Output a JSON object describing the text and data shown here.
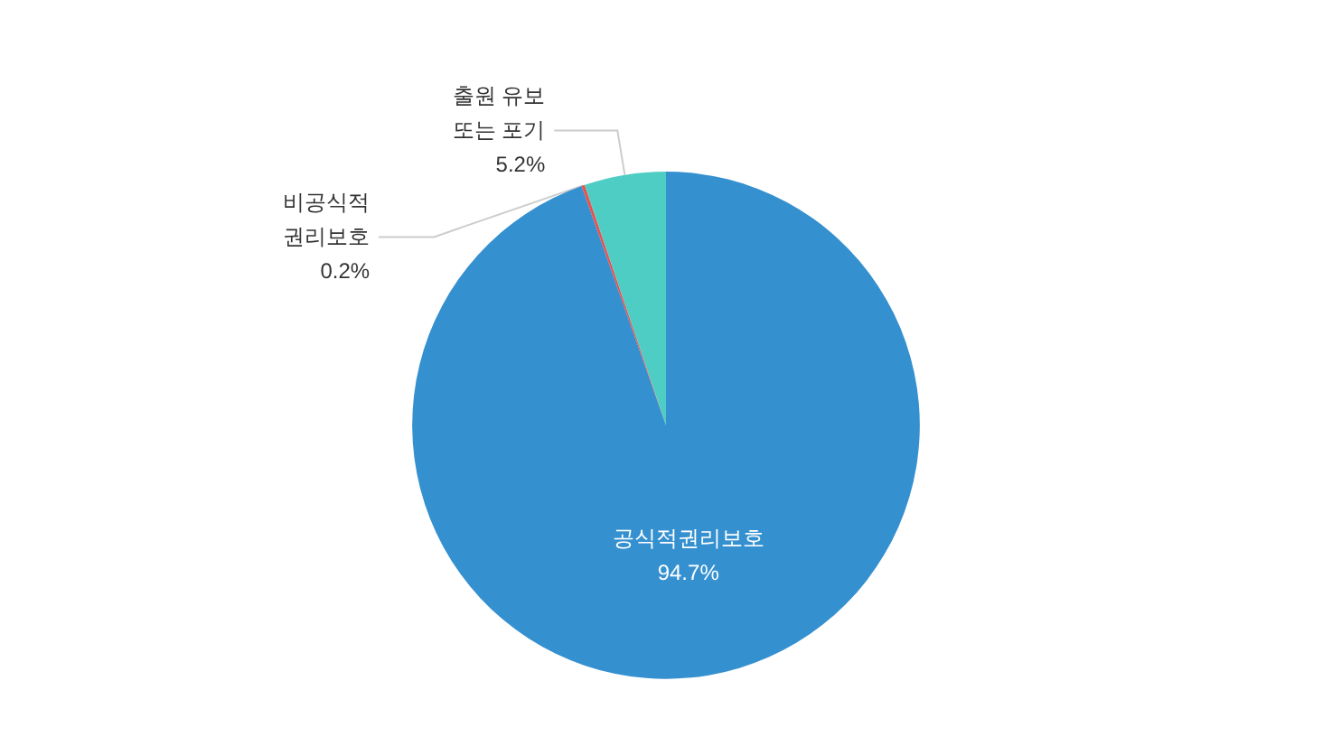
{
  "chart_data": {
    "type": "pie",
    "categories": [
      "공식적권리보호",
      "비공식적\n권리보호",
      "출원 유보\n또는 포기"
    ],
    "values": [
      94.7,
      0.2,
      5.2
    ],
    "colors": [
      "#3590d0",
      "#e9504e",
      "#4ecdc4"
    ],
    "value_labels": [
      "94.7%",
      "0.2%",
      "5.2%"
    ],
    "legend": false
  }
}
